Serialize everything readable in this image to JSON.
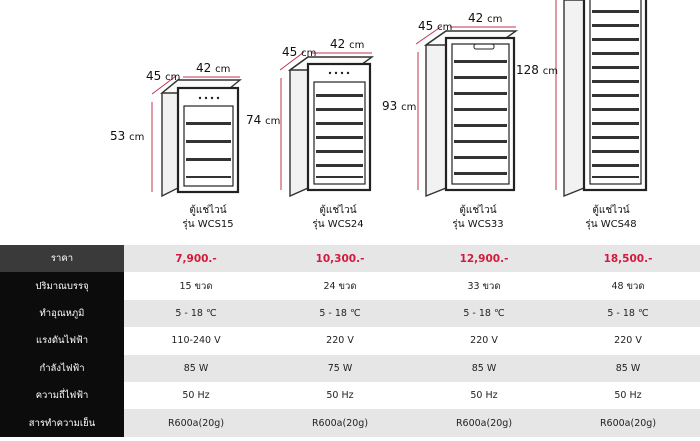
{
  "products": [
    {
      "name": "ตู้แช่ไวน์",
      "model": "รุ่น WCS15",
      "depth": "45",
      "width": "42",
      "height": "53",
      "unit": "cm"
    },
    {
      "name": "ตู้แช่ไวน์",
      "model": "รุ่น WCS24",
      "depth": "45",
      "width": "42",
      "height": "74",
      "unit": "cm"
    },
    {
      "name": "ตู้แช่ไวน์",
      "model": "รุ่น WCS33",
      "depth": "45",
      "width": "42",
      "height": "93",
      "unit": "cm"
    },
    {
      "name": "ตู้แช่ไวน์",
      "model": "รุ่น WCS48",
      "depth": "",
      "width": "",
      "height": "128",
      "unit": "cm"
    }
  ],
  "spec_table": {
    "rows": [
      {
        "label": "ราคา",
        "values": [
          "7,900.-",
          "10,300.-",
          "12,900.-",
          "18,500.-"
        ]
      },
      {
        "label": "ปริมาณบรรจุ",
        "values": [
          "15 ขวด",
          "24 ขวด",
          "33 ขวด",
          "48 ขวด"
        ]
      },
      {
        "label": "ทำอุณหภูมิ",
        "values": [
          "5 - 18 ℃",
          "5 - 18 ℃",
          "5 - 18 ℃",
          "5 - 18 ℃"
        ]
      },
      {
        "label": "แรงดันไฟฟ้า",
        "values": [
          "110-240 V",
          "220 V",
          "220 V",
          "220 V"
        ]
      },
      {
        "label": "กำลังไฟฟ้า",
        "values": [
          "85 W",
          "75 W",
          "85 W",
          "85 W"
        ]
      },
      {
        "label": "ความถี่ไฟฟ้า",
        "values": [
          "50 Hz",
          "50 Hz",
          "50 Hz",
          "50 Hz"
        ]
      },
      {
        "label": "สารทำความเย็น",
        "values": [
          "R600a(20g)",
          "R600a(20g)",
          "R600a(20g)",
          "R600a(20g)"
        ]
      }
    ]
  }
}
